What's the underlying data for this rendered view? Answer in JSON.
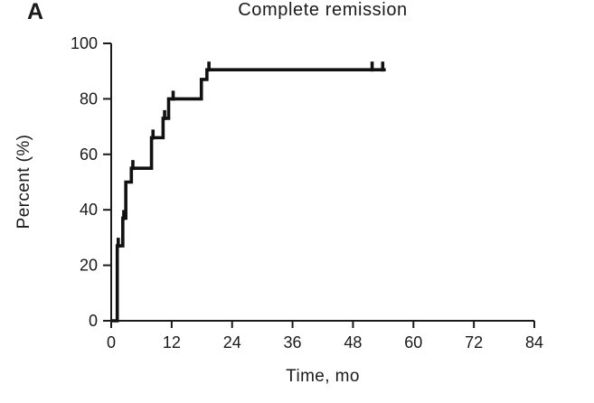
{
  "figure": {
    "panel_label": "A"
  },
  "chart_data": {
    "type": "line",
    "chart_style": "kaplan-meier-step",
    "title": "Complete remission",
    "xlabel": "Time, mo",
    "ylabel": "Percent (%)",
    "xlim": [
      0,
      84
    ],
    "ylim": [
      0,
      100
    ],
    "xticks": [
      0,
      12,
      24,
      36,
      48,
      60,
      72,
      84
    ],
    "yticks": [
      0,
      20,
      40,
      60,
      80,
      100
    ],
    "grid": false,
    "legend": "none",
    "line_color": "#111111",
    "series": [
      {
        "name": "Complete remission",
        "start": [
          0,
          0
        ],
        "events": [
          [
            1.2,
            27
          ],
          [
            2.3,
            37
          ],
          [
            2.9,
            50
          ],
          [
            4.0,
            55
          ],
          [
            8.0,
            66
          ],
          [
            10.3,
            73
          ],
          [
            11.4,
            80
          ],
          [
            17.9,
            87
          ],
          [
            19.0,
            90.5
          ]
        ],
        "end_time": 54.5,
        "censor_marks": [
          [
            1.4,
            27
          ],
          [
            2.5,
            37
          ],
          [
            4.3,
            55
          ],
          [
            8.3,
            66
          ],
          [
            10.6,
            73
          ],
          [
            12.3,
            80
          ],
          [
            19.4,
            90.5
          ],
          [
            51.8,
            90.5
          ],
          [
            53.9,
            90.5
          ]
        ]
      }
    ]
  }
}
